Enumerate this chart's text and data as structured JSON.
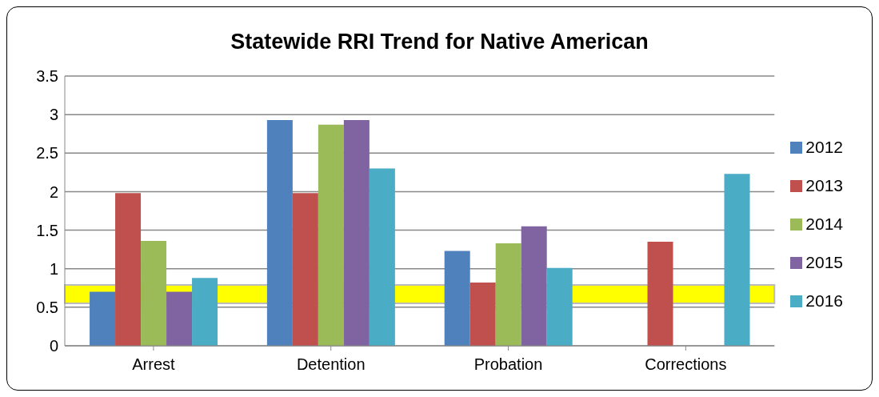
{
  "chart_data": {
    "type": "bar",
    "title": "Statewide RRI Trend for Native American",
    "categories": [
      "Arrest",
      "Detention",
      "Probation",
      "Corrections"
    ],
    "series": [
      {
        "name": "2012",
        "color": "#4f81bd",
        "values": [
          0.7,
          2.93,
          1.23,
          null
        ]
      },
      {
        "name": "2013",
        "color": "#c0504d",
        "values": [
          1.98,
          1.98,
          0.82,
          1.35
        ]
      },
      {
        "name": "2014",
        "color": "#9bbb59",
        "values": [
          1.36,
          2.87,
          1.33,
          null
        ]
      },
      {
        "name": "2015",
        "color": "#8064a2",
        "values": [
          0.7,
          2.93,
          1.55,
          null
        ]
      },
      {
        "name": "2016",
        "color": "#4bacc6",
        "values": [
          0.88,
          2.3,
          1.01,
          2.23
        ]
      }
    ],
    "ylim": [
      0,
      3.5
    ],
    "yticks": [
      0,
      0.5,
      1,
      1.5,
      2,
      2.5,
      3,
      3.5
    ],
    "grid": "y",
    "legend": "right",
    "bands": [
      {
        "axis": "y",
        "from": 0.55,
        "to": 0.79,
        "color": "#ffff00"
      }
    ]
  }
}
